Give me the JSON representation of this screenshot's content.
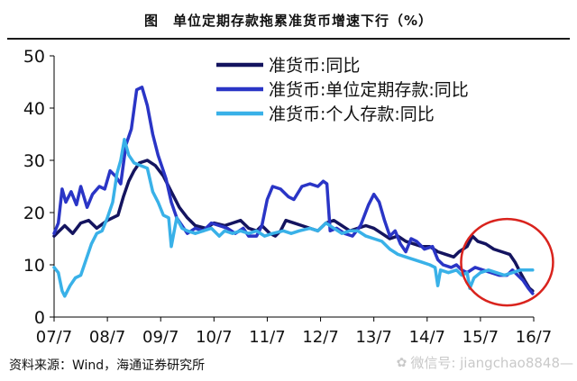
{
  "title": "图　单位定期存款拖累准货币增速下行（%）",
  "source": "资料来源：Wind，海通证券研究所",
  "watermark": "微信号: jiangchao8848—",
  "chart_data": {
    "type": "line",
    "ylim": [
      0,
      50
    ],
    "yticks": [
      0,
      10,
      20,
      30,
      40,
      50
    ],
    "xlim": [
      2007.5,
      2016.5
    ],
    "xticks": [
      {
        "label": "07/7",
        "x": 2007.5
      },
      {
        "label": "08/7",
        "x": 2008.5
      },
      {
        "label": "09/7",
        "x": 2009.5
      },
      {
        "label": "10/7",
        "x": 2010.5
      },
      {
        "label": "11/7",
        "x": 2011.5
      },
      {
        "label": "12/7",
        "x": 2012.5
      },
      {
        "label": "13/7",
        "x": 2013.5
      },
      {
        "label": "14/7",
        "x": 2014.5
      },
      {
        "label": "15/7",
        "x": 2015.5
      },
      {
        "label": "16/7",
        "x": 2016.5
      }
    ],
    "legend_position": "top-right",
    "series": [
      {
        "name": "准货币:同比",
        "color": "#14145f",
        "points": [
          [
            2007.5,
            15.5
          ],
          [
            2007.6,
            16.5
          ],
          [
            2007.7,
            17.5
          ],
          [
            2007.85,
            16.0
          ],
          [
            2008.0,
            18.0
          ],
          [
            2008.15,
            18.5
          ],
          [
            2008.3,
            17.0
          ],
          [
            2008.5,
            18.5
          ],
          [
            2008.7,
            19.5
          ],
          [
            2008.8,
            23.0
          ],
          [
            2008.9,
            26.0
          ],
          [
            2009.0,
            28.0
          ],
          [
            2009.1,
            29.5
          ],
          [
            2009.25,
            30.0
          ],
          [
            2009.4,
            29.0
          ],
          [
            2009.55,
            27.0
          ],
          [
            2009.7,
            24.0
          ],
          [
            2009.85,
            21.0
          ],
          [
            2010.0,
            19.0
          ],
          [
            2010.15,
            17.5
          ],
          [
            2010.35,
            17.0
          ],
          [
            2010.5,
            18.0
          ],
          [
            2010.7,
            17.5
          ],
          [
            2010.85,
            18.0
          ],
          [
            2011.0,
            18.5
          ],
          [
            2011.15,
            17.0
          ],
          [
            2011.3,
            16.5
          ],
          [
            2011.4,
            17.5
          ],
          [
            2011.55,
            16.0
          ],
          [
            2011.65,
            15.5
          ],
          [
            2011.75,
            16.5
          ],
          [
            2011.85,
            18.5
          ],
          [
            2012.0,
            18.0
          ],
          [
            2012.15,
            17.5
          ],
          [
            2012.3,
            17.0
          ],
          [
            2012.45,
            16.5
          ],
          [
            2012.6,
            18.0
          ],
          [
            2012.75,
            18.5
          ],
          [
            2012.9,
            17.5
          ],
          [
            2013.05,
            16.5
          ],
          [
            2013.2,
            17.0
          ],
          [
            2013.35,
            17.5
          ],
          [
            2013.5,
            17.0
          ],
          [
            2013.65,
            16.0
          ],
          [
            2013.8,
            15.0
          ],
          [
            2013.95,
            15.5
          ],
          [
            2014.1,
            14.5
          ],
          [
            2014.25,
            14.0
          ],
          [
            2014.4,
            13.5
          ],
          [
            2014.55,
            13.5
          ],
          [
            2014.7,
            12.5
          ],
          [
            2014.85,
            12.0
          ],
          [
            2015.0,
            11.5
          ],
          [
            2015.1,
            12.5
          ],
          [
            2015.25,
            13.5
          ],
          [
            2015.35,
            15.5
          ],
          [
            2015.45,
            14.5
          ],
          [
            2015.6,
            14.0
          ],
          [
            2015.75,
            13.0
          ],
          [
            2015.9,
            12.5
          ],
          [
            2016.05,
            12.0
          ],
          [
            2016.15,
            10.5
          ],
          [
            2016.25,
            8.5
          ],
          [
            2016.33,
            7.0
          ],
          [
            2016.42,
            5.5
          ],
          [
            2016.48,
            5.0
          ]
        ]
      },
      {
        "name": "准货币:单位定期存款:同比",
        "color": "#2a35c6",
        "points": [
          [
            2007.5,
            16.0
          ],
          [
            2007.58,
            18.0
          ],
          [
            2007.65,
            24.5
          ],
          [
            2007.72,
            22.0
          ],
          [
            2007.82,
            24.0
          ],
          [
            2007.92,
            21.5
          ],
          [
            2008.0,
            25.0
          ],
          [
            2008.12,
            21.0
          ],
          [
            2008.22,
            23.5
          ],
          [
            2008.35,
            25.0
          ],
          [
            2008.45,
            24.5
          ],
          [
            2008.55,
            28.0
          ],
          [
            2008.65,
            27.0
          ],
          [
            2008.75,
            25.5
          ],
          [
            2008.85,
            33.0
          ],
          [
            2008.95,
            36.0
          ],
          [
            2009.05,
            43.5
          ],
          [
            2009.15,
            44.0
          ],
          [
            2009.25,
            40.5
          ],
          [
            2009.35,
            35.0
          ],
          [
            2009.45,
            31.0
          ],
          [
            2009.6,
            26.5
          ],
          [
            2009.7,
            22.0
          ],
          [
            2009.8,
            19.0
          ],
          [
            2009.9,
            17.5
          ],
          [
            2010.0,
            16.0
          ],
          [
            2010.15,
            17.0
          ],
          [
            2010.3,
            16.5
          ],
          [
            2010.45,
            18.0
          ],
          [
            2010.6,
            17.5
          ],
          [
            2010.75,
            17.0
          ],
          [
            2010.9,
            16.0
          ],
          [
            2011.05,
            17.0
          ],
          [
            2011.15,
            15.5
          ],
          [
            2011.3,
            15.5
          ],
          [
            2011.4,
            17.5
          ],
          [
            2011.5,
            22.5
          ],
          [
            2011.6,
            25.0
          ],
          [
            2011.75,
            24.5
          ],
          [
            2011.9,
            23.0
          ],
          [
            2012.0,
            22.5
          ],
          [
            2012.15,
            25.0
          ],
          [
            2012.3,
            25.5
          ],
          [
            2012.45,
            25.0
          ],
          [
            2012.55,
            26.0
          ],
          [
            2012.62,
            25.5
          ],
          [
            2012.68,
            16.5
          ],
          [
            2012.8,
            17.0
          ],
          [
            2012.95,
            16.0
          ],
          [
            2013.1,
            15.5
          ],
          [
            2013.25,
            17.5
          ],
          [
            2013.4,
            21.5
          ],
          [
            2013.5,
            23.5
          ],
          [
            2013.6,
            22.0
          ],
          [
            2013.7,
            18.5
          ],
          [
            2013.8,
            15.5
          ],
          [
            2013.9,
            16.5
          ],
          [
            2014.0,
            14.0
          ],
          [
            2014.1,
            12.5
          ],
          [
            2014.2,
            15.0
          ],
          [
            2014.3,
            14.5
          ],
          [
            2014.45,
            13.0
          ],
          [
            2014.6,
            13.5
          ],
          [
            2014.7,
            11.0
          ],
          [
            2014.8,
            10.0
          ],
          [
            2014.95,
            9.5
          ],
          [
            2015.05,
            10.0
          ],
          [
            2015.15,
            9.0
          ],
          [
            2015.25,
            8.5
          ],
          [
            2015.4,
            9.5
          ],
          [
            2015.55,
            9.0
          ],
          [
            2015.7,
            8.5
          ],
          [
            2015.85,
            8.0
          ],
          [
            2016.0,
            8.0
          ],
          [
            2016.1,
            9.0
          ],
          [
            2016.2,
            8.0
          ],
          [
            2016.3,
            7.0
          ],
          [
            2016.4,
            5.5
          ],
          [
            2016.48,
            4.5
          ]
        ]
      },
      {
        "name": "准货币:个人存款:同比",
        "color": "#39b1e8",
        "points": [
          [
            2007.5,
            9.5
          ],
          [
            2007.58,
            8.5
          ],
          [
            2007.65,
            5.0
          ],
          [
            2007.7,
            4.0
          ],
          [
            2007.8,
            6.0
          ],
          [
            2007.9,
            7.5
          ],
          [
            2008.0,
            8.0
          ],
          [
            2008.1,
            11.0
          ],
          [
            2008.2,
            14.0
          ],
          [
            2008.3,
            16.0
          ],
          [
            2008.4,
            16.5
          ],
          [
            2008.5,
            19.0
          ],
          [
            2008.6,
            22.0
          ],
          [
            2008.68,
            27.5
          ],
          [
            2008.75,
            30.0
          ],
          [
            2008.82,
            34.0
          ],
          [
            2008.9,
            31.0
          ],
          [
            2009.0,
            29.5
          ],
          [
            2009.12,
            29.0
          ],
          [
            2009.25,
            28.5
          ],
          [
            2009.35,
            24.0
          ],
          [
            2009.45,
            22.0
          ],
          [
            2009.55,
            19.5
          ],
          [
            2009.65,
            19.0
          ],
          [
            2009.7,
            13.5
          ],
          [
            2009.8,
            19.0
          ],
          [
            2009.9,
            17.0
          ],
          [
            2010.0,
            16.5
          ],
          [
            2010.15,
            16.0
          ],
          [
            2010.3,
            16.5
          ],
          [
            2010.45,
            17.0
          ],
          [
            2010.6,
            15.5
          ],
          [
            2010.7,
            16.5
          ],
          [
            2010.85,
            16.0
          ],
          [
            2011.0,
            16.5
          ],
          [
            2011.15,
            16.0
          ],
          [
            2011.3,
            16.5
          ],
          [
            2011.45,
            15.5
          ],
          [
            2011.6,
            16.0
          ],
          [
            2011.8,
            16.5
          ],
          [
            2011.95,
            16.0
          ],
          [
            2012.1,
            16.5
          ],
          [
            2012.3,
            17.0
          ],
          [
            2012.45,
            16.5
          ],
          [
            2012.6,
            18.0
          ],
          [
            2012.75,
            17.0
          ],
          [
            2012.9,
            16.0
          ],
          [
            2013.05,
            16.5
          ],
          [
            2013.2,
            16.5
          ],
          [
            2013.35,
            15.5
          ],
          [
            2013.5,
            15.0
          ],
          [
            2013.65,
            14.5
          ],
          [
            2013.8,
            13.0
          ],
          [
            2013.95,
            12.0
          ],
          [
            2014.1,
            11.5
          ],
          [
            2014.25,
            11.0
          ],
          [
            2014.4,
            10.5
          ],
          [
            2014.55,
            10.0
          ],
          [
            2014.65,
            9.5
          ],
          [
            2014.7,
            6.0
          ],
          [
            2014.75,
            9.0
          ],
          [
            2014.9,
            8.5
          ],
          [
            2015.05,
            9.0
          ],
          [
            2015.15,
            8.0
          ],
          [
            2015.25,
            8.5
          ],
          [
            2015.3,
            5.5
          ],
          [
            2015.38,
            7.5
          ],
          [
            2015.5,
            8.5
          ],
          [
            2015.65,
            9.0
          ],
          [
            2015.8,
            8.5
          ],
          [
            2015.95,
            8.0
          ],
          [
            2016.1,
            8.5
          ],
          [
            2016.25,
            9.0
          ],
          [
            2016.4,
            9.0
          ],
          [
            2016.48,
            9.0
          ]
        ]
      }
    ],
    "annotations": [
      {
        "type": "circle",
        "color": "#d9231d",
        "cx": 2016.0,
        "cy": 10.5
      }
    ]
  }
}
